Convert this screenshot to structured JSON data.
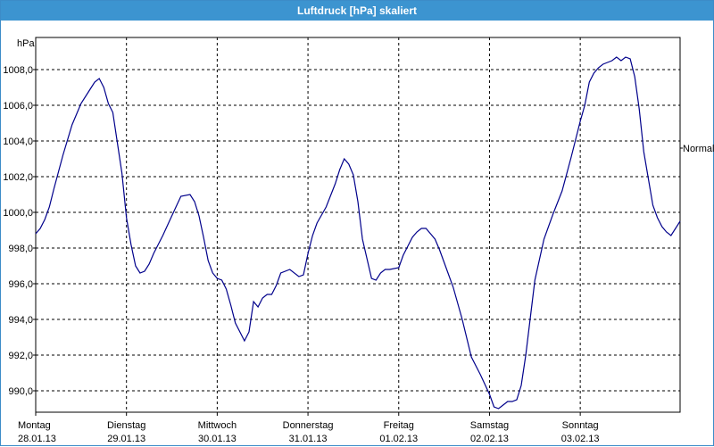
{
  "window": {
    "title": "Luftdruck [hPa] skaliert"
  },
  "chart_data": {
    "type": "line",
    "title": "Luftdruck [hPa] skaliert",
    "ylabel": "hPa",
    "ylim": [
      988.8,
      1009.8
    ],
    "xlim": [
      0,
      7.1
    ],
    "yticks": [
      "990,0",
      "992,0",
      "994,0",
      "996,0",
      "998,0",
      "1000,0",
      "1002,0",
      "1004,0",
      "1006,0",
      "1008,0"
    ],
    "ytick_values": [
      990,
      992,
      994,
      996,
      998,
      1000,
      1002,
      1004,
      1006,
      1008
    ],
    "xticks": [
      {
        "day": "Montag",
        "date": "28.01.13"
      },
      {
        "day": "Dienstag",
        "date": "29.01.13"
      },
      {
        "day": "Mittwoch",
        "date": "30.01.13"
      },
      {
        "day": "Donnerstag",
        "date": "31.01.13"
      },
      {
        "day": "Freitag",
        "date": "01.02.13"
      },
      {
        "day": "Samstag",
        "date": "02.02.13"
      },
      {
        "day": "Sonntag",
        "date": "03.02.13"
      }
    ],
    "grid": true,
    "reference_line": {
      "label": "Normal",
      "value": 1003.6
    },
    "series": [
      {
        "color": "#00008b",
        "x": [
          0,
          0.05,
          0.1,
          0.15,
          0.2,
          0.3,
          0.4,
          0.5,
          0.6,
          0.65,
          0.7,
          0.75,
          0.8,
          0.85,
          0.9,
          0.95,
          1.0,
          1.05,
          1.1,
          1.15,
          1.2,
          1.25,
          1.3,
          1.35,
          1.4,
          1.5,
          1.6,
          1.7,
          1.75,
          1.8,
          1.85,
          1.9,
          1.95,
          2.0,
          2.05,
          2.1,
          2.15,
          2.2,
          2.3,
          2.35,
          2.4,
          2.45,
          2.5,
          2.55,
          2.6,
          2.65,
          2.7,
          2.8,
          2.9,
          2.95,
          3.0,
          3.05,
          3.1,
          3.2,
          3.3,
          3.35,
          3.4,
          3.45,
          3.5,
          3.55,
          3.6,
          3.65,
          3.7,
          3.75,
          3.8,
          3.85,
          3.9,
          4.0,
          4.05,
          4.1,
          4.15,
          4.2,
          4.25,
          4.3,
          4.35,
          4.4,
          4.45,
          4.5,
          4.6,
          4.7,
          4.8,
          4.9,
          5.0,
          5.05,
          5.1,
          5.15,
          5.2,
          5.25,
          5.3,
          5.35,
          5.4,
          5.45,
          5.5,
          5.6,
          5.7,
          5.8,
          5.9,
          6.0,
          6.05,
          6.1,
          6.15,
          6.2,
          6.25,
          6.3,
          6.35,
          6.4,
          6.45,
          6.5,
          6.55,
          6.6,
          6.65,
          6.7,
          6.75,
          6.8,
          6.85,
          6.9,
          6.95,
          7.0,
          7.05,
          7.1
        ],
        "y": [
          998.8,
          999.1,
          999.6,
          1000.3,
          1001.3,
          1003.2,
          1004.9,
          1006.1,
          1006.9,
          1007.3,
          1007.5,
          1007.0,
          1006.1,
          1005.6,
          1003.9,
          1002.2,
          999.7,
          998.2,
          997.0,
          996.6,
          996.7,
          997.1,
          997.7,
          998.2,
          998.7,
          999.8,
          1000.9,
          1001.0,
          1000.6,
          999.8,
          998.6,
          997.3,
          996.6,
          996.3,
          996.2,
          995.7,
          994.8,
          993.8,
          992.8,
          993.3,
          995.0,
          994.7,
          995.2,
          995.4,
          995.4,
          995.9,
          996.6,
          996.8,
          996.4,
          996.5,
          997.7,
          998.7,
          999.4,
          1000.3,
          1001.6,
          1002.4,
          1003.0,
          1002.7,
          1002.1,
          1000.6,
          998.5,
          997.4,
          996.3,
          996.2,
          996.6,
          996.8,
          996.8,
          996.9,
          997.6,
          998.1,
          998.6,
          998.9,
          999.1,
          999.1,
          998.8,
          998.5,
          997.9,
          997.2,
          995.8,
          994.0,
          991.9,
          990.9,
          989.8,
          989.1,
          989.0,
          989.2,
          989.4,
          989.4,
          989.5,
          990.3,
          992.0,
          994.1,
          996.2,
          998.5,
          999.9,
          1001.2,
          1003.1,
          1005.1,
          1006.0,
          1007.3,
          1007.8,
          1008.1,
          1008.3,
          1008.4,
          1008.5,
          1008.7,
          1008.5,
          1008.7,
          1008.6,
          1007.6,
          1005.8,
          1003.4,
          1001.9,
          1000.4,
          999.7,
          999.2,
          998.9,
          998.7,
          999.1,
          999.5
        ]
      }
    ]
  }
}
